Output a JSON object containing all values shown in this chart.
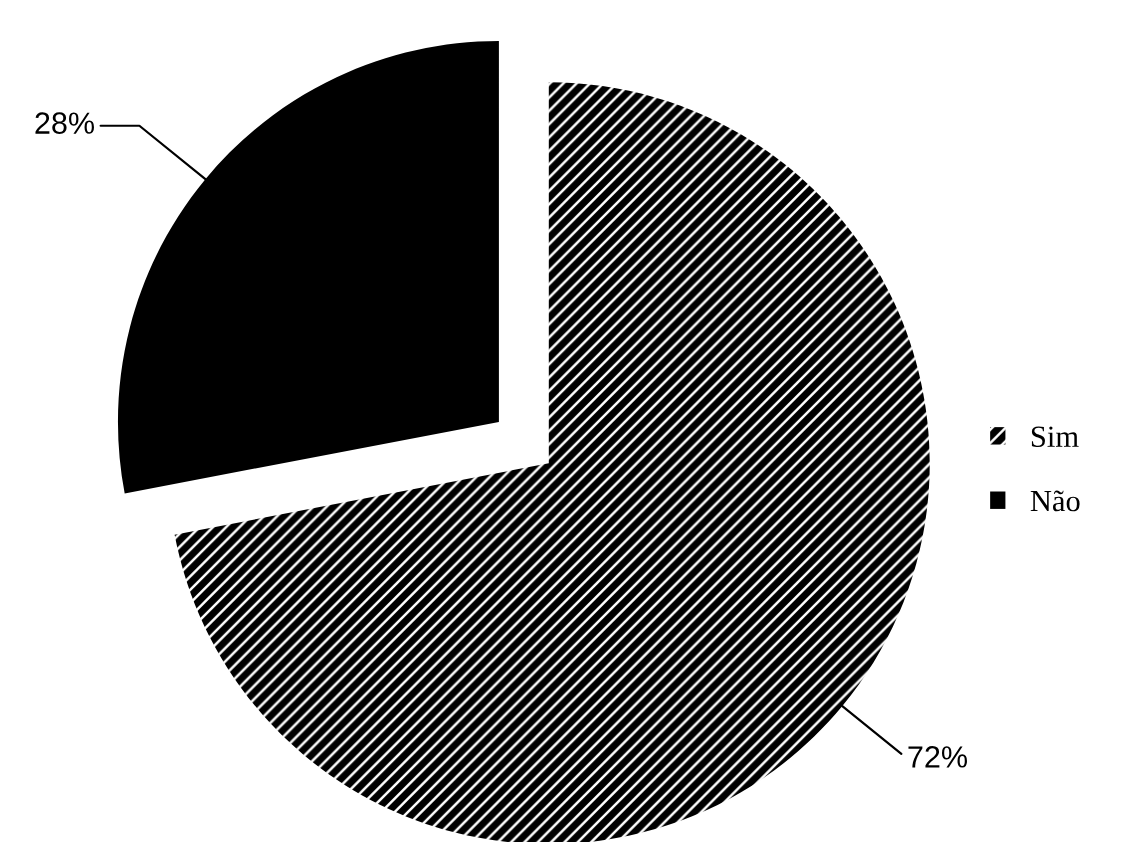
{
  "chart_data": {
    "type": "pie",
    "categories": [
      "Sim",
      "Não"
    ],
    "values": [
      72,
      28
    ],
    "colors": [
      "#000000",
      "#000000"
    ],
    "value_labels": [
      "72%",
      "28%"
    ],
    "legend": "right"
  }
}
